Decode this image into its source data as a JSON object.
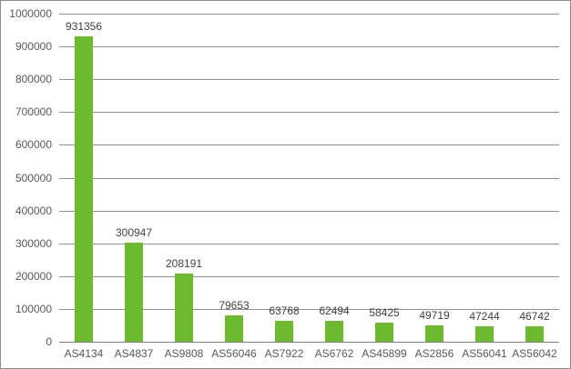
{
  "chart_data": {
    "type": "bar",
    "title": "",
    "xlabel": "",
    "ylabel": "",
    "categories": [
      "AS4134",
      "AS4837",
      "AS9808",
      "AS56046",
      "AS7922",
      "AS6762",
      "AS45899",
      "AS2856",
      "AS56041",
      "AS56042"
    ],
    "values": [
      931356,
      300947,
      208191,
      79653,
      63768,
      62494,
      58425,
      49719,
      47244,
      46742
    ],
    "value_labels": [
      "931356",
      "300947",
      "208191",
      "79653",
      "63768",
      "62494",
      "58425",
      "49719",
      "47244",
      "46742"
    ],
    "ylim": [
      0,
      1000000
    ],
    "ytick_step": 100000,
    "ytick_labels": [
      "0",
      "100000",
      "200000",
      "300000",
      "400000",
      "500000",
      "600000",
      "700000",
      "800000",
      "900000",
      "1000000"
    ],
    "grid": true,
    "legend_position": "none",
    "colors": {
      "bar": "#6CBB2F",
      "gridline": "#919191",
      "axis_line": "#7F7F7F",
      "axis_text": "#595959",
      "value_text": "#404040",
      "border": "#8C8C8C",
      "background": "#FFFFFF"
    }
  }
}
